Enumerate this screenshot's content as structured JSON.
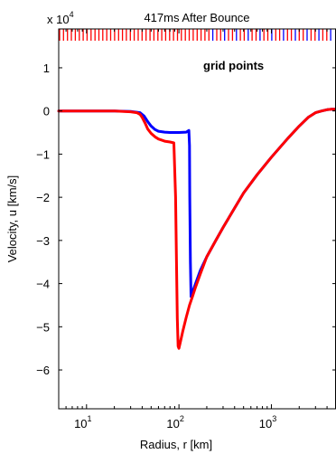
{
  "chart_data": {
    "type": "line",
    "title": "417ms After Bounce",
    "xlabel": "Radius, r [km]",
    "ylabel": "Velocity, u [km/s]",
    "x_scale": "log",
    "xlim": [
      5,
      5000
    ],
    "ylim": [
      -69000,
      19000
    ],
    "y_multiplier_label": "x 10",
    "y_multiplier_exponent": "4",
    "x_ticks": [
      10,
      100,
      1000
    ],
    "x_tick_labels": [
      {
        "base": "10",
        "exp": "1"
      },
      {
        "base": "10",
        "exp": "2"
      },
      {
        "base": "10",
        "exp": "3"
      }
    ],
    "y_ticks": [
      10000,
      0,
      -10000,
      -20000,
      -30000,
      -40000,
      -50000,
      -60000
    ],
    "y_tick_labels": [
      "1",
      "0",
      "−1",
      "−2",
      "−3",
      "−4",
      "−5",
      "−6"
    ],
    "grid": false,
    "annotation": "grid points",
    "series": [
      {
        "color": "#0000ff",
        "x": [
          5,
          10,
          20,
          30,
          38,
          42,
          46,
          50,
          55,
          60,
          70,
          80,
          100,
          120,
          128,
          130,
          131,
          133,
          135,
          137,
          140,
          150,
          170,
          200,
          250,
          300,
          400,
          500,
          700,
          1000,
          1500,
          2000,
          2500,
          3000,
          3500,
          4000,
          4500,
          5000
        ],
        "y": [
          0,
          0,
          0,
          -100,
          -400,
          -1200,
          -2500,
          -3500,
          -4300,
          -4700,
          -4900,
          -5000,
          -5000,
          -4900,
          -4500,
          -8000,
          -20000,
          -35000,
          -43000,
          -42500,
          -42000,
          -40200,
          -37000,
          -33800,
          -30000,
          -27000,
          -22500,
          -19000,
          -14800,
          -10700,
          -6400,
          -3500,
          -1500,
          -400,
          0,
          300,
          400,
          400
        ]
      },
      {
        "color": "#ff0000",
        "x": [
          5,
          10,
          20,
          30,
          35,
          38,
          40,
          43,
          46,
          50,
          55,
          60,
          70,
          80,
          88,
          92,
          94,
          96,
          98,
          100,
          105,
          110,
          120,
          130,
          140,
          150,
          170,
          200,
          250,
          300,
          400,
          500,
          700,
          1000,
          1500,
          2000,
          2500,
          3000,
          3500,
          4000,
          4500,
          5000
        ],
        "y": [
          0,
          0,
          0,
          -200,
          -400,
          -800,
          -1500,
          -2800,
          -4200,
          -5200,
          -6000,
          -6500,
          -7000,
          -7200,
          -7400,
          -20000,
          -35000,
          -48000,
          -54500,
          -55000,
          -53000,
          -51000,
          -47800,
          -45000,
          -43000,
          -41000,
          -37800,
          -33800,
          -30000,
          -27000,
          -22500,
          -19000,
          -14800,
          -10700,
          -6400,
          -3500,
          -1500,
          -400,
          0,
          300,
          400,
          400
        ]
      }
    ],
    "grid_point_marker_colors": [
      "#ff0000",
      "#0000ff"
    ]
  }
}
